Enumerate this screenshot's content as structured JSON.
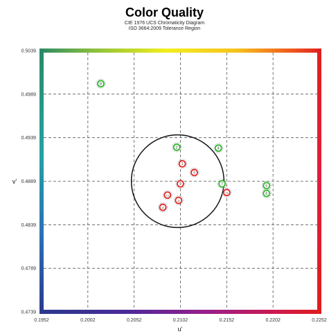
{
  "header": {
    "title": "Color Quality",
    "subtitle_1": "CIE 1976 UCS Chromaticity Diagram",
    "subtitle_2": "ISO 3664:2009 Tolerance Region"
  },
  "chart_data": {
    "type": "scatter",
    "title": "Color Quality",
    "subtitle": [
      "CIE 1976 UCS Chromaticity Diagram",
      "ISO 3664:2009 Tolerance Region"
    ],
    "xlabel": "u'",
    "ylabel": "v'",
    "xlim": [
      0.1952,
      0.2252
    ],
    "ylim": [
      0.4739,
      0.5039
    ],
    "x_ticks": [
      "0.1952",
      "0.2002",
      "0.2052",
      "0.2102",
      "0.2152",
      "0.2202",
      "0.2252"
    ],
    "y_ticks": [
      "0.4739",
      "0.4789",
      "0.4839",
      "0.4889",
      "0.4939",
      "0.4989",
      "0.5039"
    ],
    "grid": true,
    "tolerance_circle": {
      "center_u": 0.2099,
      "center_v": 0.4889,
      "radius": 0.005
    },
    "series": [
      {
        "color": "#2fb82f",
        "points": [
          {
            "u": 0.2016,
            "v": 0.5001,
            "label": "8"
          },
          {
            "u": 0.2098,
            "v": 0.4928,
            "label": "2"
          },
          {
            "u": 0.2143,
            "v": 0.4927,
            "label": "4"
          },
          {
            "u": 0.2147,
            "v": 0.4886,
            "label": "7"
          },
          {
            "u": 0.2195,
            "v": 0.4884,
            "label": "5"
          },
          {
            "u": 0.2195,
            "v": 0.4875,
            "label": "6"
          }
        ]
      },
      {
        "color": "#e02828",
        "points": [
          {
            "u": 0.2104,
            "v": 0.4909,
            "label": "1"
          },
          {
            "u": 0.2117,
            "v": 0.4899,
            "label": "3"
          },
          {
            "u": 0.2102,
            "v": 0.4886,
            "label": "9"
          },
          {
            "u": 0.2088,
            "v": 0.4873,
            "label": "10"
          },
          {
            "u": 0.21,
            "v": 0.4867,
            "label": "11"
          },
          {
            "u": 0.2083,
            "v": 0.4859,
            "label": "12"
          },
          {
            "u": 0.2152,
            "v": 0.4876,
            "label": "13"
          }
        ]
      }
    ]
  }
}
